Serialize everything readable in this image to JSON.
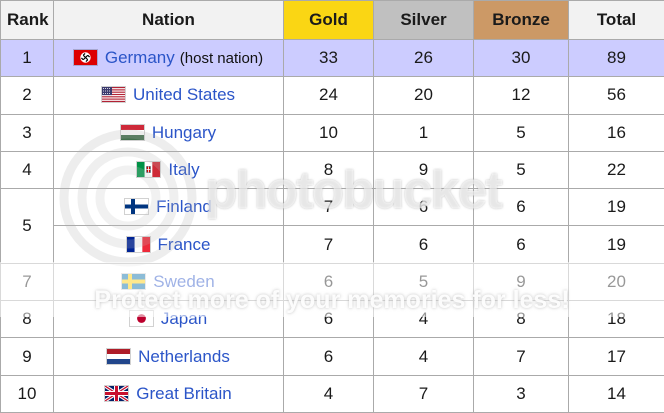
{
  "table": {
    "headers": {
      "rank": "Rank",
      "nation": "Nation",
      "gold": "Gold",
      "silver": "Silver",
      "bronze": "Bronze",
      "total": "Total"
    },
    "header_colors": {
      "default": "#F2F2F2",
      "gold": "#FAD614",
      "silver": "#C0C0C0",
      "bronze": "#CC9966"
    },
    "highlight_color": "#CCCCFF",
    "link_color": "#2B55C8",
    "rows": [
      {
        "rank": "1",
        "nation": "Germany",
        "note": "(host nation)",
        "flag": "germany-flag",
        "gold": "33",
        "silver": "26",
        "bronze": "30",
        "total": "89",
        "highlight": true
      },
      {
        "rank": "2",
        "nation": "United States",
        "flag": "united-states-flag",
        "gold": "24",
        "silver": "20",
        "bronze": "12",
        "total": "56"
      },
      {
        "rank": "3",
        "nation": "Hungary",
        "flag": "hungary-flag",
        "gold": "10",
        "silver": "1",
        "bronze": "5",
        "total": "16"
      },
      {
        "rank": "4",
        "nation": "Italy",
        "flag": "italy-flag",
        "gold": "8",
        "silver": "9",
        "bronze": "5",
        "total": "22"
      },
      {
        "rank": "5",
        "nation": "Finland",
        "flag": "finland-flag",
        "gold": "7",
        "silver": "6",
        "bronze": "6",
        "total": "19",
        "rank_span": 2
      },
      {
        "nation": "France",
        "flag": "france-flag",
        "gold": "7",
        "silver": "6",
        "bronze": "6",
        "total": "19",
        "no_rank": true
      },
      {
        "rank": "7",
        "nation": "Sweden",
        "flag": "sweden-flag",
        "gold": "6",
        "silver": "5",
        "bronze": "9",
        "total": "20"
      },
      {
        "rank": "8",
        "nation": "Japan",
        "flag": "japan-flag",
        "gold": "6",
        "silver": "4",
        "bronze": "8",
        "total": "18"
      },
      {
        "rank": "9",
        "nation": "Netherlands",
        "flag": "netherlands-flag",
        "gold": "6",
        "silver": "4",
        "bronze": "7",
        "total": "17"
      },
      {
        "rank": "10",
        "nation": "Great Britain",
        "flag": "great-britain-flag",
        "gold": "4",
        "silver": "7",
        "bronze": "3",
        "total": "14"
      }
    ]
  },
  "watermark": {
    "brand": "photobucket",
    "tagline": "Protect more of your memories for less!"
  }
}
